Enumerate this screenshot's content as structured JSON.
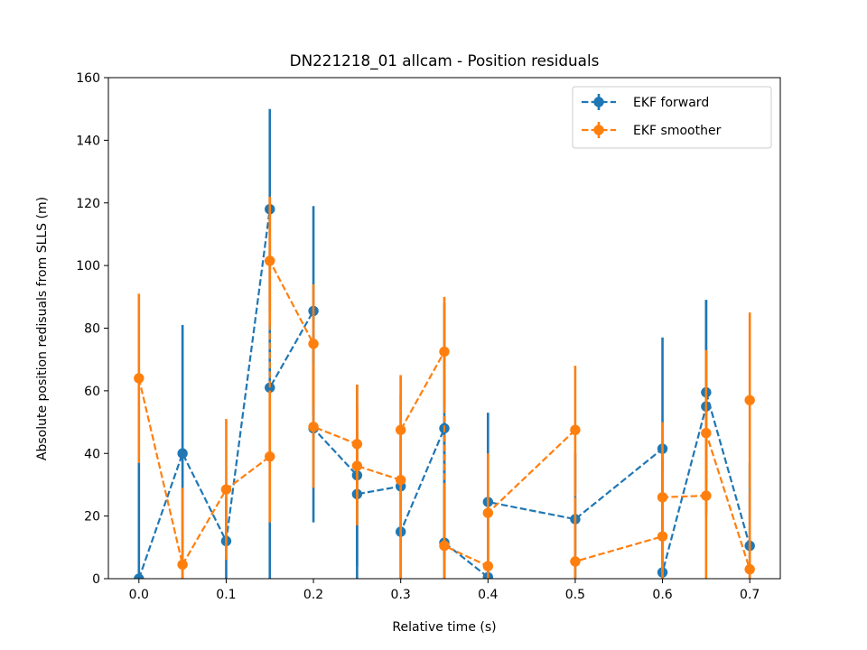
{
  "chart_data": {
    "type": "line",
    "title": "DN221218_01 allcam - Position residuals",
    "xlabel": "Relative time (s)",
    "ylabel": "Absolute position redisuals from SLLS (m)",
    "xlim": [
      -0.035,
      0.735
    ],
    "ylim": [
      0,
      160
    ],
    "xticks": [
      0.0,
      0.1,
      0.2,
      0.3,
      0.4,
      0.5,
      0.6,
      0.7
    ],
    "yticks": [
      0,
      20,
      40,
      60,
      80,
      100,
      120,
      140,
      160
    ],
    "xtick_labels": [
      "0.0",
      "0.1",
      "0.2",
      "0.3",
      "0.4",
      "0.5",
      "0.6",
      "0.7"
    ],
    "ytick_labels": [
      "0",
      "20",
      "40",
      "60",
      "80",
      "100",
      "120",
      "140",
      "160"
    ],
    "grid": false,
    "legend_position": "top-right",
    "series": [
      {
        "name": "EKF forward",
        "color": "#1f77b4",
        "points": [
          {
            "x": 0.0,
            "y": 0.0,
            "lo": 0.0,
            "hi": 37
          },
          {
            "x": 0.05,
            "y": 40,
            "lo": 0.0,
            "hi": 81
          },
          {
            "x": 0.1,
            "y": 12,
            "lo": 0.0,
            "hi": 26
          },
          {
            "x": 0.15,
            "y": 118,
            "lo": 85,
            "hi": 150
          },
          {
            "x": 0.15,
            "y": 61,
            "lo": 0.0,
            "hi": 122
          },
          {
            "x": 0.2,
            "y": 85.5,
            "lo": 52,
            "hi": 119
          },
          {
            "x": 0.2,
            "y": 48,
            "lo": 18,
            "hi": 78
          },
          {
            "x": 0.25,
            "y": 33,
            "lo": 4,
            "hi": 62
          },
          {
            "x": 0.25,
            "y": 27,
            "lo": 0.0,
            "hi": 55
          },
          {
            "x": 0.3,
            "y": 29.5,
            "lo": 0.0,
            "hi": 59
          },
          {
            "x": 0.3,
            "y": 15,
            "lo": 0.0,
            "hi": 44
          },
          {
            "x": 0.35,
            "y": 48,
            "lo": 7,
            "hi": 88
          },
          {
            "x": 0.35,
            "y": 11.5,
            "lo": 0.0,
            "hi": 52
          },
          {
            "x": 0.4,
            "y": 0.5,
            "lo": 0.0,
            "hi": 25
          },
          {
            "x": 0.4,
            "y": 24.5,
            "lo": 0.0,
            "hi": 53
          },
          {
            "x": 0.5,
            "y": 19,
            "lo": 0.0,
            "hi": 40
          },
          {
            "x": 0.6,
            "y": 41.5,
            "lo": 6,
            "hi": 77
          },
          {
            "x": 0.6,
            "y": 2,
            "lo": 0.0,
            "hi": 38
          },
          {
            "x": 0.65,
            "y": 55,
            "lo": 21,
            "hi": 89
          },
          {
            "x": 0.65,
            "y": 59.5,
            "lo": 30,
            "hi": 89
          },
          {
            "x": 0.7,
            "y": 10.5,
            "lo": 0.0,
            "hi": 37
          }
        ]
      },
      {
        "name": "EKF smoother",
        "color": "#ff7f0e",
        "points": [
          {
            "x": 0.0,
            "y": 64,
            "lo": 37,
            "hi": 91
          },
          {
            "x": 0.05,
            "y": 4.5,
            "lo": 0.0,
            "hi": 29
          },
          {
            "x": 0.1,
            "y": 28.5,
            "lo": 6,
            "hi": 51
          },
          {
            "x": 0.15,
            "y": 39,
            "lo": 18,
            "hi": 60
          },
          {
            "x": 0.15,
            "y": 101.5,
            "lo": 81,
            "hi": 122
          },
          {
            "x": 0.2,
            "y": 75,
            "lo": 56,
            "hi": 94
          },
          {
            "x": 0.2,
            "y": 48.5,
            "lo": 29,
            "hi": 68
          },
          {
            "x": 0.25,
            "y": 43,
            "lo": 24,
            "hi": 62
          },
          {
            "x": 0.25,
            "y": 36,
            "lo": 17,
            "hi": 55
          },
          {
            "x": 0.3,
            "y": 31.5,
            "lo": 0.0,
            "hi": 65
          },
          {
            "x": 0.3,
            "y": 47.5,
            "lo": 30,
            "hi": 65
          },
          {
            "x": 0.35,
            "y": 72.5,
            "lo": 55,
            "hi": 90
          },
          {
            "x": 0.35,
            "y": 10.5,
            "lo": 0.0,
            "hi": 30
          },
          {
            "x": 0.4,
            "y": 4,
            "lo": 0.0,
            "hi": 17
          },
          {
            "x": 0.4,
            "y": 21,
            "lo": 3,
            "hi": 40
          },
          {
            "x": 0.5,
            "y": 47.5,
            "lo": 27,
            "hi": 68
          },
          {
            "x": 0.5,
            "y": 5.5,
            "lo": 0.0,
            "hi": 26
          },
          {
            "x": 0.6,
            "y": 13.5,
            "lo": 0.0,
            "hi": 34
          },
          {
            "x": 0.6,
            "y": 26,
            "lo": 2,
            "hi": 50
          },
          {
            "x": 0.65,
            "y": 26.5,
            "lo": 0.0,
            "hi": 53
          },
          {
            "x": 0.65,
            "y": 46.5,
            "lo": 20,
            "hi": 73
          },
          {
            "x": 0.7,
            "y": 3,
            "lo": 0.0,
            "hi": 28
          },
          {
            "x": 0.7,
            "y": 57,
            "lo": 29,
            "hi": 85
          }
        ]
      }
    ]
  }
}
